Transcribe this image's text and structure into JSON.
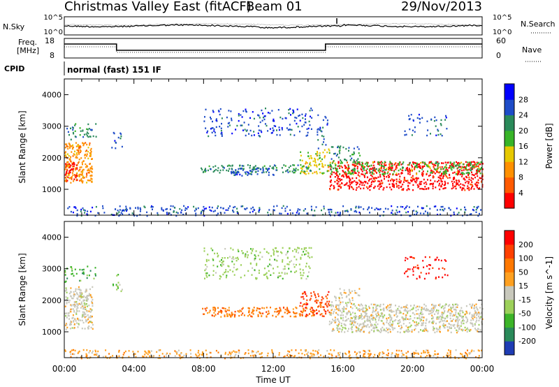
{
  "header": {
    "title": "Christmas Valley East (fitACF)",
    "beam": "Beam 01",
    "date": "29/Nov/2013"
  },
  "strip": {
    "noise_label": "N.Sky",
    "noise_ticks": [
      "10^5",
      "10^0"
    ],
    "noise_right_label": "N.Search",
    "noise_right_ticks": [
      "10^5",
      "10^0"
    ],
    "freq_label_1": "Freq.",
    "freq_label_2": "[MHz]",
    "freq_ticks": [
      "18",
      "8"
    ],
    "nave_label": "Nave",
    "nave_ticks": [
      "60",
      "0"
    ],
    "cpid_label": "CPID",
    "cpid_value": "normal (fast) 151 IF"
  },
  "chart_data": [
    {
      "type": "heatmap",
      "name": "power",
      "ylabel": "Slant Range [km]",
      "xlabel": "Time UT",
      "ylim": [
        180,
        4500
      ],
      "yticks": [
        1000,
        2000,
        3000,
        4000
      ],
      "xticks": [
        "00:00",
        "04:00",
        "08:00",
        "12:00",
        "16:00",
        "20:00",
        "00:00"
      ],
      "xlim_hours": [
        0,
        24
      ],
      "colorbar": {
        "label": "Power [dB]",
        "ticks": [
          "28",
          "24",
          "20",
          "16",
          "12",
          "8",
          "4"
        ],
        "colors": [
          "#ff0000",
          "#ff5a00",
          "#ff9000",
          "#e6c800",
          "#38b428",
          "#2a8a5a",
          "#1e4cc8",
          "#0000ff"
        ]
      },
      "regions": [
        {
          "t0": 0.0,
          "t1": 1.6,
          "r0": 1200,
          "r1": 2500,
          "c": 2,
          "d": 0.85
        },
        {
          "t0": 0.0,
          "t1": 0.7,
          "r0": 1300,
          "r1": 1900,
          "c": 0,
          "d": 0.7
        },
        {
          "t0": 0.0,
          "t1": 1.8,
          "r0": 2600,
          "r1": 3100,
          "c": 5,
          "d": 0.35
        },
        {
          "t0": 2.7,
          "t1": 3.3,
          "r0": 2300,
          "r1": 2900,
          "c": 6,
          "d": 0.3
        },
        {
          "t0": 7.8,
          "t1": 14.3,
          "r0": 1550,
          "r1": 1800,
          "c": 5,
          "d": 0.6
        },
        {
          "t0": 9.5,
          "t1": 12.0,
          "r0": 1450,
          "r1": 1700,
          "c": 6,
          "d": 0.6
        },
        {
          "t0": 8.0,
          "t1": 14.2,
          "r0": 2700,
          "r1": 3600,
          "c": 6,
          "d": 0.25
        },
        {
          "t0": 13.5,
          "t1": 15.2,
          "r0": 1500,
          "r1": 2300,
          "c": 3,
          "d": 0.5
        },
        {
          "t0": 14.5,
          "t1": 15.1,
          "r0": 2300,
          "r1": 3400,
          "c": 6,
          "d": 0.3
        },
        {
          "t0": 15.2,
          "t1": 24.0,
          "r0": 1000,
          "r1": 1900,
          "c": 0,
          "d": 0.75
        },
        {
          "t0": 15.2,
          "t1": 24.0,
          "r0": 1500,
          "r1": 1900,
          "c": 4,
          "d": 0.55
        },
        {
          "t0": 15.3,
          "t1": 17.0,
          "r0": 1900,
          "r1": 2400,
          "c": 5,
          "d": 0.4
        },
        {
          "t0": 19.5,
          "t1": 22.0,
          "r0": 2700,
          "r1": 3400,
          "c": 6,
          "d": 0.2
        },
        {
          "t0": 0.0,
          "t1": 24.0,
          "r0": 180,
          "r1": 500,
          "c": 6,
          "d": 0.35
        }
      ]
    },
    {
      "type": "heatmap",
      "name": "velocity",
      "ylabel": "Slant Range [km]",
      "xlabel": "Time UT",
      "ylim": [
        180,
        4500
      ],
      "yticks": [
        1000,
        2000,
        3000,
        4000
      ],
      "xticks": [
        "00:00",
        "04:00",
        "08:00",
        "12:00",
        "16:00",
        "20:00",
        "00:00"
      ],
      "xlim_hours": [
        0,
        24
      ],
      "colorbar": {
        "label": "Velocity [m s^-1]",
        "ticks": [
          "200",
          "100",
          "50",
          "15",
          "-15",
          "-50",
          "-100",
          "-200"
        ],
        "colors": [
          "#1e3cb4",
          "#2a8a5a",
          "#3cb428",
          "#9cd05a",
          "#c8c8bc",
          "#ffa020",
          "#ff7800",
          "#ff4000",
          "#ff0000"
        ]
      },
      "regions": [
        {
          "t0": 0.0,
          "t1": 1.6,
          "r0": 1100,
          "r1": 2450,
          "c": 4,
          "d": 0.85
        },
        {
          "t0": 0.0,
          "t1": 1.8,
          "r0": 2600,
          "r1": 3100,
          "c": 2,
          "d": 0.3
        },
        {
          "t0": 2.7,
          "t1": 3.3,
          "r0": 2300,
          "r1": 2900,
          "c": 3,
          "d": 0.3
        },
        {
          "t0": 7.8,
          "t1": 14.3,
          "r0": 1500,
          "r1": 1800,
          "c": 6,
          "d": 0.7
        },
        {
          "t0": 8.0,
          "t1": 14.2,
          "r0": 2700,
          "r1": 3700,
          "c": 3,
          "d": 0.3
        },
        {
          "t0": 13.5,
          "t1": 15.2,
          "r0": 1500,
          "r1": 2300,
          "c": 7,
          "d": 0.5
        },
        {
          "t0": 15.2,
          "t1": 24.0,
          "r0": 1000,
          "r1": 1900,
          "c": 4,
          "d": 0.85
        },
        {
          "t0": 15.3,
          "t1": 17.0,
          "r0": 1900,
          "r1": 2400,
          "c": 4,
          "d": 0.4
        },
        {
          "t0": 19.5,
          "t1": 22.0,
          "r0": 2700,
          "r1": 3400,
          "c": 8,
          "d": 0.25
        },
        {
          "t0": 0.0,
          "t1": 24.0,
          "r0": 180,
          "r1": 450,
          "c": 5,
          "d": 0.5
        }
      ]
    }
  ]
}
